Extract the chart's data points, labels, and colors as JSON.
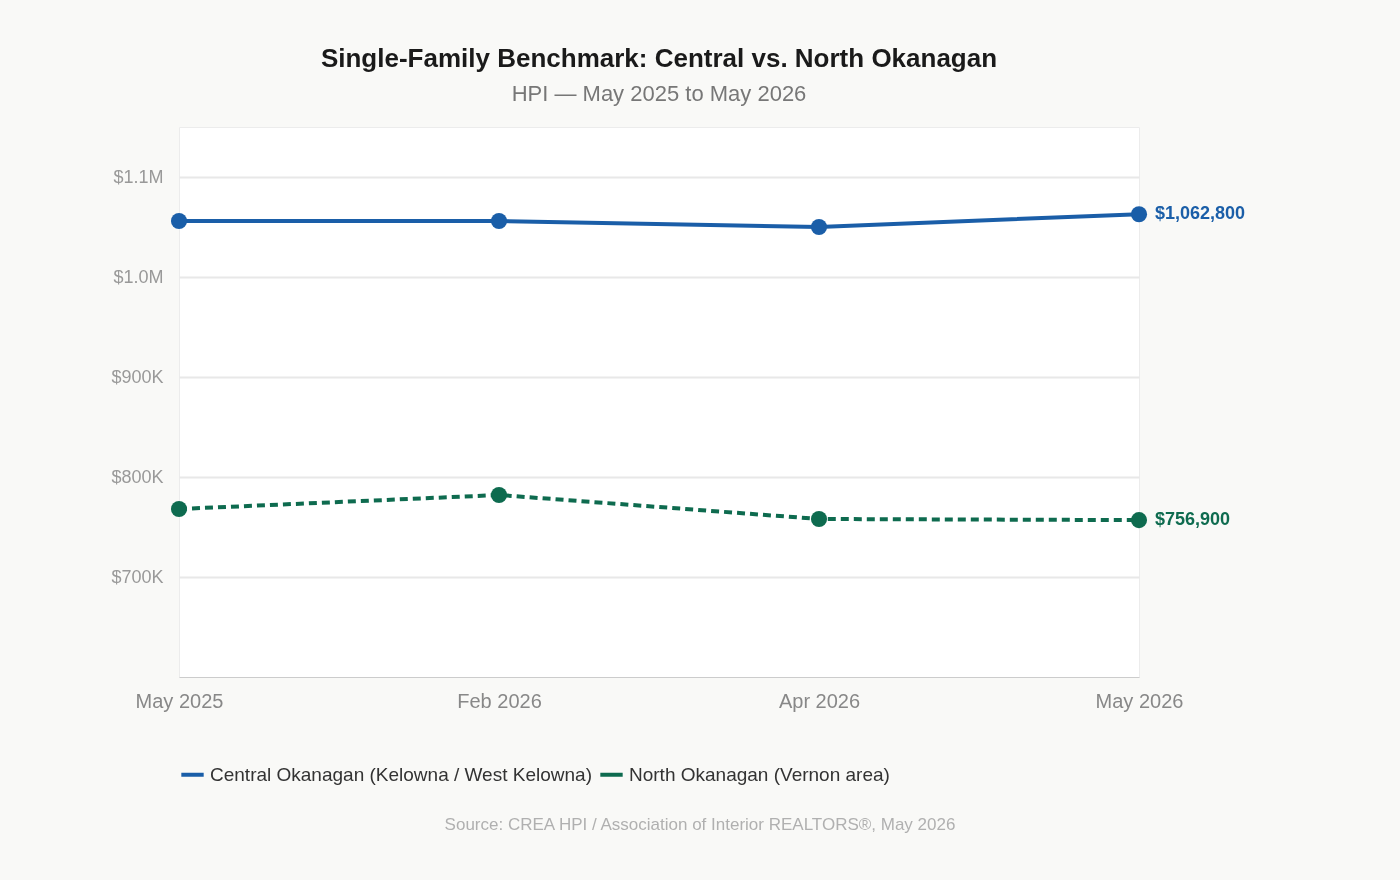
{
  "chart_data": {
    "type": "line",
    "title": "Single-Family Benchmark: Central vs. North Okanagan",
    "subtitle": "HPI — May 2025 to May 2026",
    "categories": [
      "May 2025",
      "Feb 2026",
      "Apr 2026",
      "May 2026"
    ],
    "series": [
      {
        "name": "Central Okanagan (Kelowna / West Kelowna)",
        "color": "#1a5ea8",
        "values": [
          1056000,
          1056000,
          1050000,
          1062800
        ],
        "value_labels": [
          null,
          null,
          null,
          "$1,062,800"
        ],
        "line_style": "solid"
      },
      {
        "name": "North Okanagan (Vernon area)",
        "color": "#0e6b4f",
        "values": [
          768000,
          782000,
          758000,
          756900
        ],
        "value_labels": [
          null,
          null,
          null,
          "$756,900"
        ],
        "line_style": "dashed"
      }
    ],
    "ylim": [
      600000,
      1150000
    ],
    "yticks": [
      {
        "value": 700000,
        "label": "$700K"
      },
      {
        "value": 800000,
        "label": "$800K"
      },
      {
        "value": 900000,
        "label": "$900K"
      },
      {
        "value": 1000000,
        "label": "$1.0M"
      },
      {
        "value": 1100000,
        "label": "$1.1M"
      }
    ],
    "grid": "y",
    "legend": "bottom",
    "marker": "circle",
    "annotations": [
      "Source: CREA HPI / Association of Interior REALTORS®, May 2026"
    ]
  }
}
